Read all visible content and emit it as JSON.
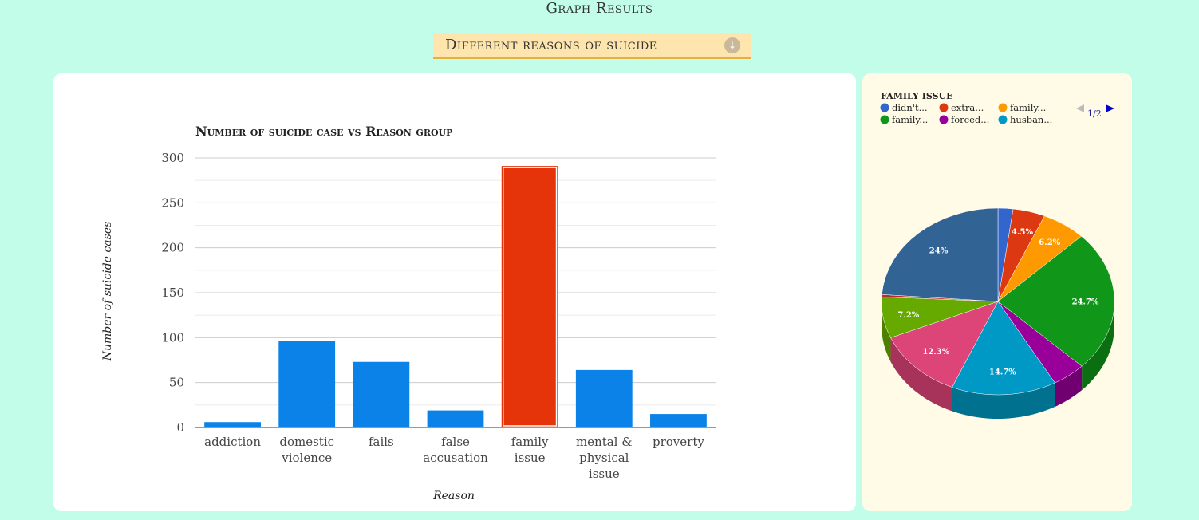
{
  "page_title": "Graph Results",
  "dropdown": {
    "selected": "Different reasons of suicide"
  },
  "chart_data": [
    {
      "type": "bar",
      "title": "Number of suicide case vs Reason group",
      "xlabel": "Reason",
      "ylabel": "Number of suicide cases",
      "ylim": [
        0,
        300
      ],
      "yticks": [
        0,
        50,
        100,
        150,
        200,
        250,
        300
      ],
      "grid": true,
      "categories": [
        [
          "addiction"
        ],
        [
          "domestic",
          "violence"
        ],
        [
          "fails"
        ],
        [
          "false",
          "accusation"
        ],
        [
          "family",
          "issue"
        ],
        [
          "mental &",
          "physical",
          "issue"
        ],
        [
          "proverty"
        ]
      ],
      "values": [
        6,
        96,
        73,
        19,
        291,
        64,
        15
      ],
      "highlight_index": 4,
      "bar_color": "#0a82e8",
      "highlight_color": "#e5330a"
    },
    {
      "type": "pie",
      "title": "FAMILY ISSUE",
      "legend_page": "1/2",
      "legend": [
        {
          "label": "didn't...",
          "color": "#3366cc"
        },
        {
          "label": "extra...",
          "color": "#dc3912"
        },
        {
          "label": "family...",
          "color": "#ff9900"
        },
        {
          "label": "family...",
          "color": "#109618"
        },
        {
          "label": "forced...",
          "color": "#990099"
        },
        {
          "label": "husban...",
          "color": "#0099c6"
        }
      ],
      "slices": [
        {
          "value": 2.1,
          "label": "",
          "color": "#3366cc",
          "side": "#284f9e"
        },
        {
          "value": 4.5,
          "label": "4.5%",
          "color": "#dc3912",
          "side": "#a82b0e"
        },
        {
          "value": 6.2,
          "label": "6.2%",
          "color": "#ff9900",
          "side": "#c47600"
        },
        {
          "value": 24.7,
          "label": "24.7%",
          "color": "#109618",
          "side": "#0b6e11"
        },
        {
          "value": 4.7,
          "label": "",
          "color": "#990099",
          "side": "#700070"
        },
        {
          "value": 14.7,
          "label": "14.7%",
          "color": "#0099c6",
          "side": "#00728f"
        },
        {
          "value": 12.3,
          "label": "12.3%",
          "color": "#dd4477",
          "side": "#a8335a"
        },
        {
          "value": 7.2,
          "label": "7.2%",
          "color": "#66aa00",
          "side": "#4d8000"
        },
        {
          "value": 0.4,
          "label": "",
          "color": "#b82e2e",
          "side": "#8a2222"
        },
        {
          "value": 24.0,
          "label": "24%",
          "color": "#316395",
          "side": "#234a70"
        }
      ]
    }
  ]
}
